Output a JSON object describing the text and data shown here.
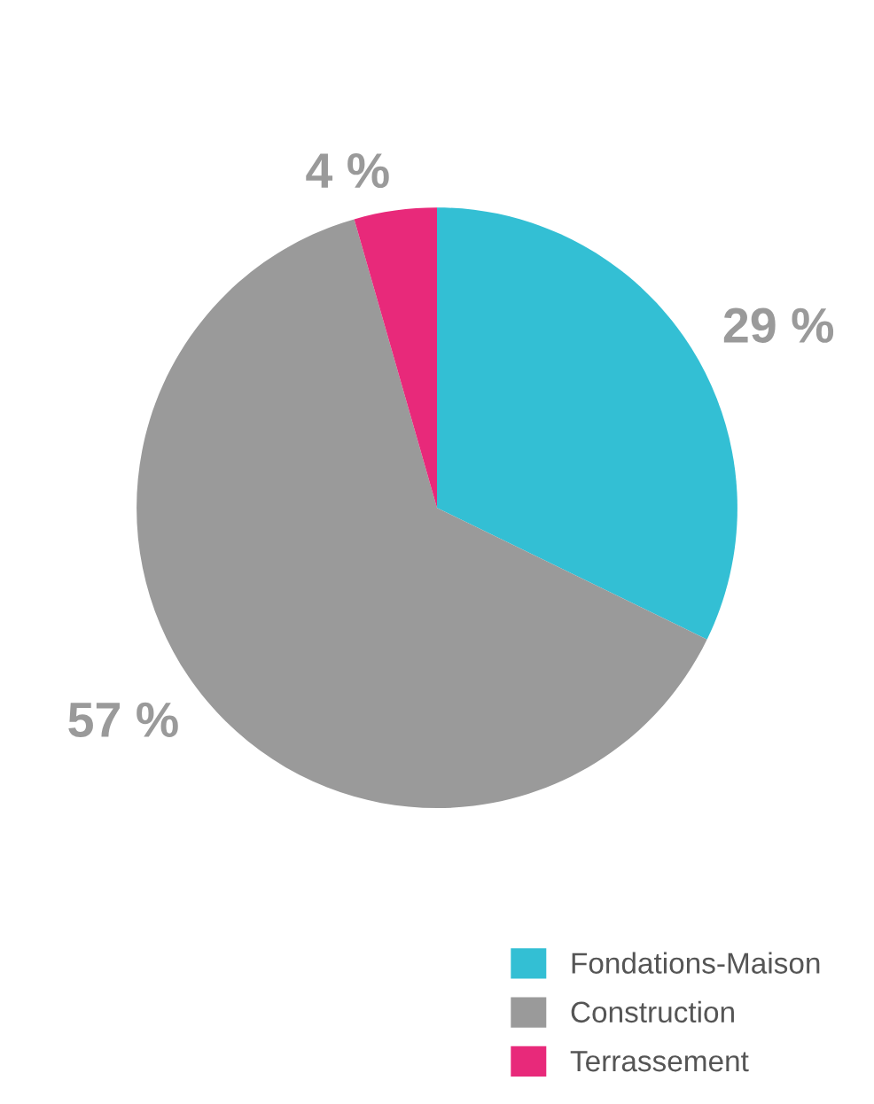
{
  "chart_data": {
    "type": "pie",
    "categories": [
      "Fondations-Maison",
      "Construction",
      "Terrassement"
    ],
    "values": [
      29,
      57,
      4
    ],
    "colors": [
      "#33bfd4",
      "#9a9a9a",
      "#e8297a"
    ],
    "value_labels": [
      "29 %",
      "57 %",
      "4 %"
    ],
    "legend": "bottom right"
  }
}
